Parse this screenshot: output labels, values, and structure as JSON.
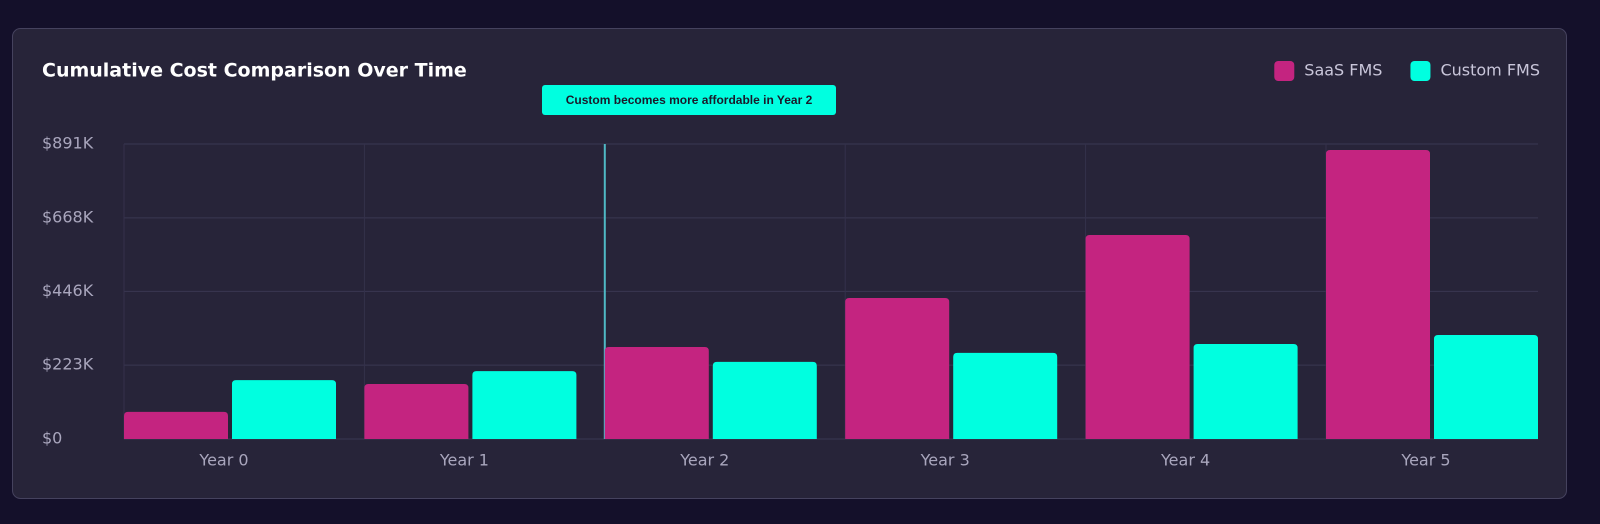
{
  "chart_data": {
    "type": "bar",
    "title": "Cumulative Cost Comparison Over Time",
    "annotation": "Custom becomes more affordable in Year 2",
    "categories": [
      "Year 0",
      "Year 1",
      "Year 2",
      "Year 3",
      "Year 4",
      "Year 5"
    ],
    "series": [
      {
        "name": "SaaS FMS",
        "color": "#c42480",
        "values": [
          82000,
          166000,
          278000,
          426000,
          616000,
          873000
        ]
      },
      {
        "name": "Custom FMS",
        "color": "#00ffe0",
        "values": [
          178000,
          205000,
          233000,
          260000,
          287000,
          314000
        ]
      }
    ],
    "ylim": [
      0,
      891000
    ],
    "yticks": [
      {
        "value": 0,
        "label": "$0"
      },
      {
        "value": 223000,
        "label": "$223K"
      },
      {
        "value": 446000,
        "label": "$446K"
      },
      {
        "value": 668000,
        "label": "$668K"
      },
      {
        "value": 891000,
        "label": "$891K"
      }
    ],
    "grid": true,
    "legend": "top-right"
  }
}
